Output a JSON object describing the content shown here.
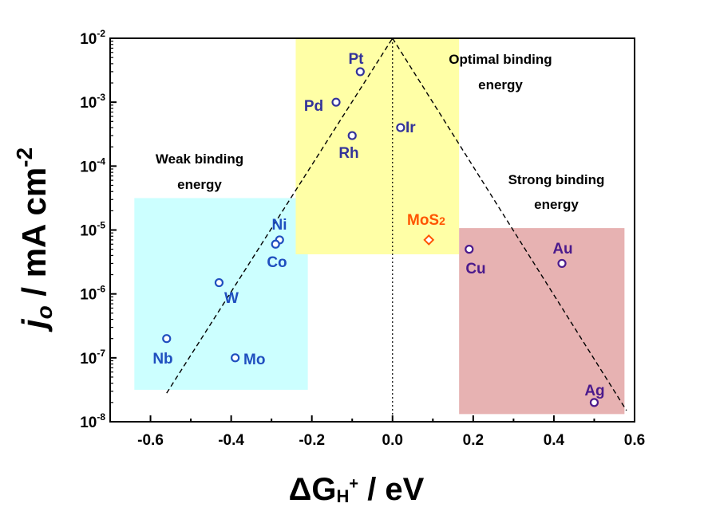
{
  "chart_data": {
    "type": "scatter",
    "title": "",
    "xlabel": {
      "delta": "Δ",
      "main": "G",
      "sub": "H",
      "sup": "+",
      "tail": " / eV"
    },
    "ylabel": {
      "var": "j",
      "sub": "o",
      "unit": " / mA cm",
      "sup": "-2"
    },
    "xlim": [
      -0.7,
      0.6
    ],
    "ylim_log10": [
      -8,
      -2
    ],
    "y_scale": "log",
    "x_ticks": [
      "-0.6",
      "-0.4",
      "-0.2",
      "0.0",
      "0.2",
      "0.4",
      "0.6"
    ],
    "x_tick_values": [
      -0.6,
      -0.4,
      -0.2,
      0.0,
      0.2,
      0.4,
      0.6
    ],
    "y_ticks": [
      {
        "base": "10",
        "exp": "-8",
        "log": -8
      },
      {
        "base": "10",
        "exp": "-7",
        "log": -7
      },
      {
        "base": "10",
        "exp": "-6",
        "log": -6
      },
      {
        "base": "10",
        "exp": "-5",
        "log": -5
      },
      {
        "base": "10",
        "exp": "-4",
        "log": -4
      },
      {
        "base": "10",
        "exp": "-3",
        "log": -3
      },
      {
        "base": "10",
        "exp": "-2",
        "log": -2
      }
    ],
    "regions": [
      {
        "name": "weak",
        "x": [
          -0.64,
          -0.21
        ],
        "y_log": [
          -7.5,
          -4.5
        ],
        "color": "#ccffff"
      },
      {
        "name": "optimal",
        "x": [
          -0.24,
          0.165
        ],
        "y_log": [
          -5.38,
          -2.0
        ],
        "color": "#ffffa6"
      },
      {
        "name": "strong",
        "x": [
          0.165,
          0.575
        ],
        "y_log": [
          -7.88,
          -4.97
        ],
        "color": "#e7b2b2"
      }
    ],
    "region_labels": {
      "weak": [
        "Weak binding",
        "energy"
      ],
      "optimal": [
        "Optimal binding",
        "energy"
      ],
      "strong": [
        "Strong binding",
        "energy"
      ]
    },
    "volcano": {
      "apex": {
        "x": 0.0,
        "y": 0.01
      },
      "left_end": {
        "x": -0.56,
        "y": 2.8e-08
      },
      "right_end": {
        "x": 0.58,
        "y": 1.5e-08
      }
    },
    "zero_line_x": 0.0,
    "points": [
      {
        "label": "Pt",
        "x": -0.08,
        "y": 0.003,
        "color": "#333399",
        "marker": "circle"
      },
      {
        "label": "Pd",
        "x": -0.14,
        "y": 0.001,
        "color": "#333399",
        "marker": "circle"
      },
      {
        "label": "Rh",
        "x": -0.1,
        "y": 0.0003,
        "color": "#333399",
        "marker": "circle"
      },
      {
        "label": "Ir",
        "x": 0.02,
        "y": 0.0004,
        "color": "#333399",
        "marker": "circle"
      },
      {
        "label": "Ni",
        "x": -0.28,
        "y": 7e-06,
        "color": "#1f4fbf",
        "marker": "circle"
      },
      {
        "label": "Co",
        "x": -0.29,
        "y": 6e-06,
        "color": "#1f4fbf",
        "marker": "circle"
      },
      {
        "label": "W",
        "x": -0.43,
        "y": 1.5e-06,
        "color": "#1f4fbf",
        "marker": "circle"
      },
      {
        "label": "Nb",
        "x": -0.56,
        "y": 2e-07,
        "color": "#1f4fbf",
        "marker": "circle"
      },
      {
        "label": "Mo",
        "x": -0.39,
        "y": 1e-07,
        "color": "#1f4fbf",
        "marker": "circle"
      },
      {
        "label": "MoS2",
        "x": 0.09,
        "y": 7e-06,
        "color": "#ff5500",
        "marker": "diamond"
      },
      {
        "label": "Cu",
        "x": 0.19,
        "y": 5e-06,
        "color": "#4b1a8c",
        "marker": "circle"
      },
      {
        "label": "Au",
        "x": 0.42,
        "y": 3e-06,
        "color": "#4b1a8c",
        "marker": "circle"
      },
      {
        "label": "Ag",
        "x": 0.5,
        "y": 2e-08,
        "color": "#4b1a8c",
        "marker": "circle"
      }
    ],
    "grid": false,
    "legend": "none"
  }
}
